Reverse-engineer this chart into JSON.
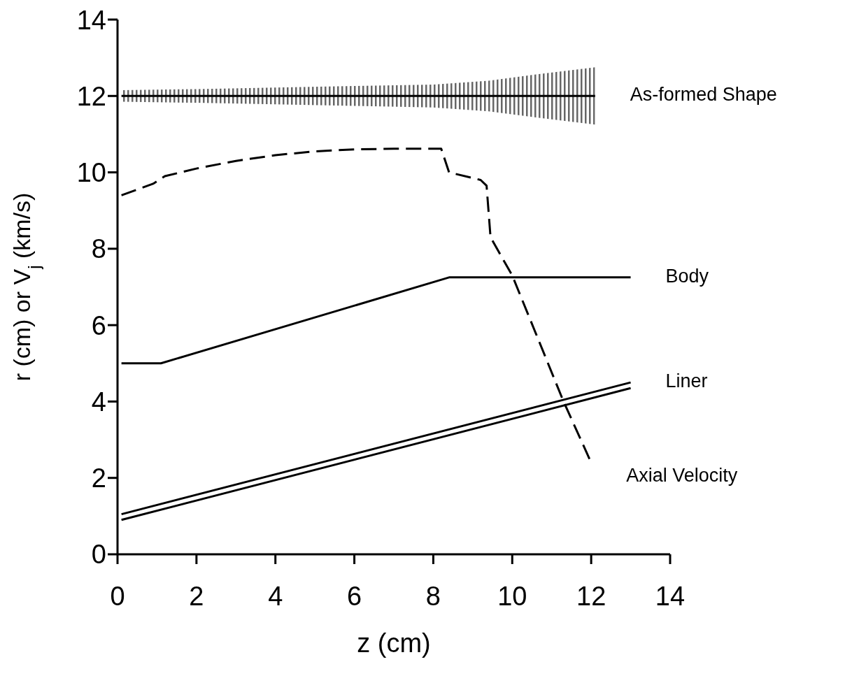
{
  "chart_data": {
    "type": "line",
    "xlabel": "z (cm)",
    "ylabel": "r (cm) or V$_{j}$ (km/s)",
    "xlim": [
      0,
      14
    ],
    "ylim": [
      0,
      14
    ],
    "xticks": [
      0,
      2,
      4,
      6,
      8,
      10,
      12,
      14
    ],
    "yticks": [
      0,
      2,
      4,
      6,
      8,
      10,
      12,
      14
    ],
    "series": [
      {
        "name": "As-formed Shape",
        "color": "#000000",
        "x": [
          0.1,
          2,
          4,
          6,
          8,
          9.4,
          10.5,
          12.1
        ],
        "values": [
          12,
          12,
          12,
          12,
          12,
          12,
          12,
          12
        ],
        "lower": [
          11.85,
          11.82,
          11.78,
          11.74,
          11.7,
          11.6,
          11.45,
          11.25
        ],
        "upper": [
          12.15,
          12.18,
          12.22,
          12.26,
          12.3,
          12.4,
          12.55,
          12.75
        ]
      },
      {
        "name": "Axial Velocity",
        "line_style": "dashed",
        "color": "#000000",
        "x": [
          0.1,
          0.9,
          1.2,
          2,
          3,
          4,
          5,
          6,
          7,
          8.2,
          8.4,
          9.2,
          9.35,
          9.45,
          10,
          11.3,
          12
        ],
        "values": [
          9.4,
          9.7,
          9.9,
          10.1,
          10.3,
          10.45,
          10.55,
          10.6,
          10.62,
          10.62,
          10,
          9.8,
          9.65,
          8.3,
          7.3,
          4,
          2.4
        ]
      },
      {
        "name": "Body",
        "color": "#000000",
        "x": [
          0.1,
          1.1,
          8.4,
          13
        ],
        "values": [
          5,
          5,
          7.25,
          7.25
        ]
      },
      {
        "name": "Liner",
        "color": "#000000",
        "x": [
          0.1,
          13
        ],
        "values": [
          1.05,
          4.5
        ]
      },
      {
        "color": "#000000",
        "x": [
          0.1,
          13
        ],
        "values": [
          0.9,
          4.35
        ]
      }
    ]
  }
}
